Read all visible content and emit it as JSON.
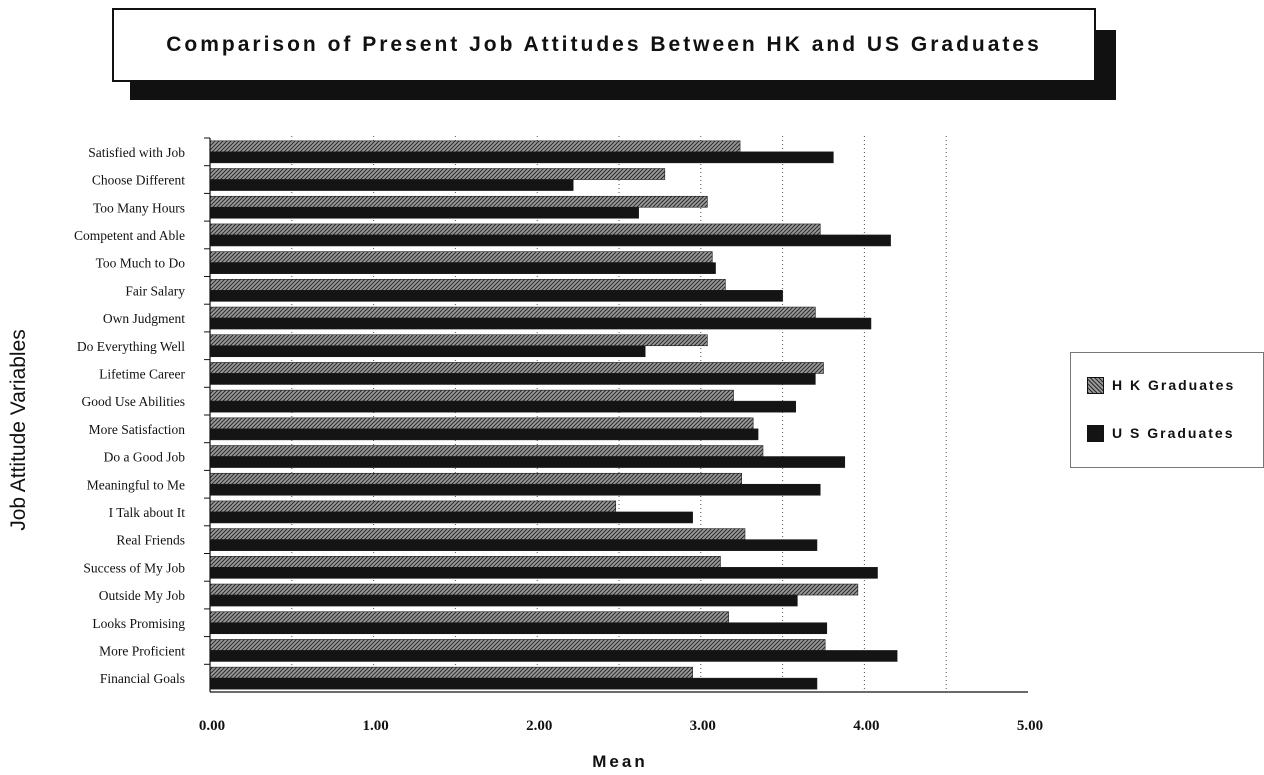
{
  "chart_data": {
    "type": "bar",
    "orientation": "horizontal",
    "title": "Comparison of Present Job Attitudes Between HK and US Graduates",
    "xlabel": "Mean",
    "ylabel": "Job Attitude Variables",
    "xlim": [
      0,
      5
    ],
    "x_ticks": [
      "0.00",
      "1.00",
      "2.00",
      "3.00",
      "4.00",
      "5.00"
    ],
    "gridlines": "dotted vertical",
    "legend_position": "right",
    "categories": [
      "Satisfied with Job",
      "Choose Different",
      "Too Many Hours",
      "Competent and Able",
      "Too Much to Do",
      "Fair Salary",
      "Own Judgment",
      "Do Everything Well",
      "Lifetime Career",
      "Good Use Abilities",
      "More Satisfaction",
      "Do a Good Job",
      "Meaningful to Me",
      "I Talk about It",
      "Real Friends",
      "Success of My Job",
      "Outside My Job",
      "Looks Promising",
      "More Proficient",
      "Financial Goals"
    ],
    "series": [
      {
        "name": "H K Graduates",
        "pattern": "hatched",
        "color": "#6e6e6e",
        "values": [
          3.24,
          2.78,
          3.04,
          3.73,
          3.07,
          3.15,
          3.7,
          3.04,
          3.75,
          3.2,
          3.32,
          3.38,
          3.25,
          2.48,
          3.27,
          3.12,
          3.96,
          3.17,
          3.76,
          2.95
        ]
      },
      {
        "name": "U S Graduates",
        "pattern": "solid",
        "color": "#141414",
        "values": [
          3.81,
          2.22,
          2.62,
          4.16,
          3.09,
          3.5,
          4.04,
          2.66,
          3.7,
          3.58,
          3.35,
          3.88,
          3.73,
          2.95,
          3.71,
          4.08,
          3.59,
          3.77,
          4.2,
          3.71
        ]
      }
    ]
  }
}
